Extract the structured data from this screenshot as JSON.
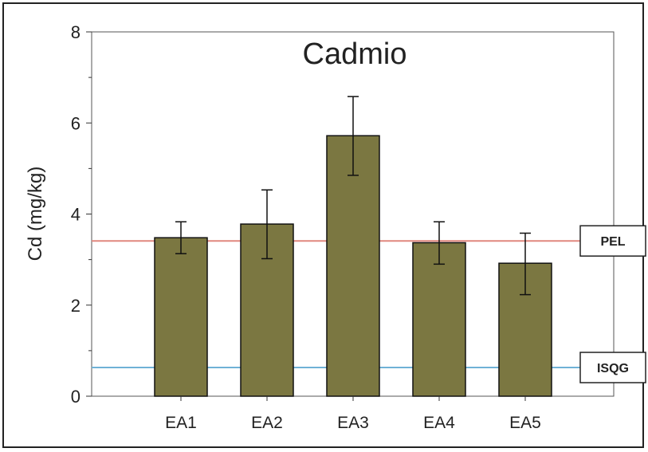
{
  "chart_data": {
    "type": "bar",
    "title": "Cadmio",
    "xlabel": "",
    "ylabel": "Cd (mg/kg)",
    "ylim": [
      0,
      8
    ],
    "yticks": [
      0,
      2,
      4,
      6,
      8
    ],
    "grid": false,
    "categories": [
      "EA1",
      "EA2",
      "EA3",
      "EA4",
      "EA5"
    ],
    "values": [
      3.48,
      3.78,
      5.72,
      3.37,
      2.92
    ],
    "error_low": [
      3.13,
      3.02,
      4.85,
      2.9,
      2.23
    ],
    "error_high": [
      3.83,
      4.53,
      6.58,
      3.83,
      3.58
    ],
    "bar_color": "#7b7741",
    "reference_lines": [
      {
        "label": "PEL",
        "value": 3.41,
        "color": "#e0877f"
      },
      {
        "label": "ISQG",
        "value": 0.63,
        "color": "#6fb2d6"
      }
    ]
  }
}
